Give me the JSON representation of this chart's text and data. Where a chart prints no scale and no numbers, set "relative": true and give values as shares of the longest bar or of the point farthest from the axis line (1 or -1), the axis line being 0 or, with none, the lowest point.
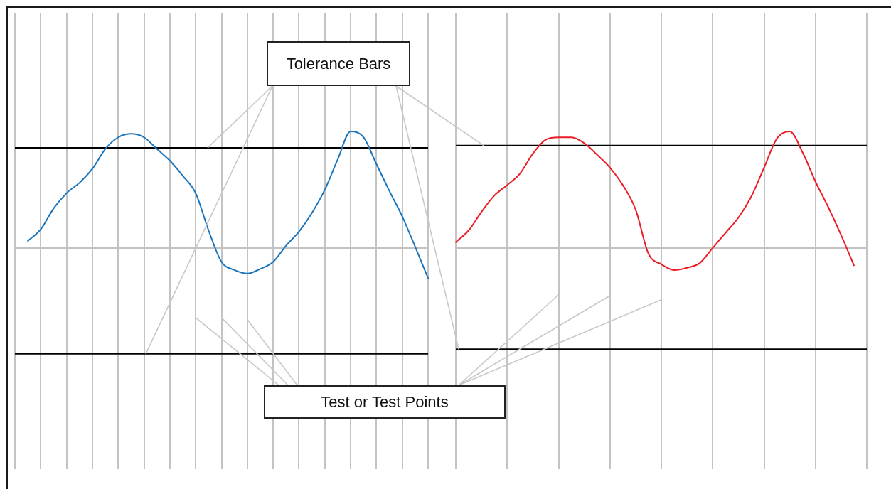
{
  "chart_data": [
    {
      "type": "line",
      "relative": true,
      "categories": [
        null,
        null,
        null,
        null,
        null,
        null,
        null,
        null,
        null,
        null,
        null,
        null,
        null,
        null,
        null,
        null,
        null,
        null,
        null,
        null,
        null,
        null,
        null,
        null,
        null,
        null,
        null,
        null,
        null,
        null,
        null,
        null,
        null
      ],
      "series": [
        {
          "color": "#1b75bc",
          "values": [
            null,
            0.06,
            0.16,
            0.34,
            0.47,
            0.56,
            0.68,
            0.85,
            0.95,
            0.98,
            0.95,
            0.85,
            0.75,
            0.62,
            0.47,
            0.15,
            -0.12,
            -0.19,
            -0.22,
            -0.18,
            -0.12,
            0.02,
            0.14,
            0.3,
            0.5,
            0.76,
            1.0,
            0.95,
            0.72,
            0.49,
            0.27,
            0.01,
            -0.26
          ]
        }
      ],
      "grid": "x",
      "ref_lines": [
        {
          "axis": "y",
          "value": 0.86,
          "color": "#000000"
        },
        {
          "axis": "y",
          "value": -0.91,
          "color": "#000000"
        }
      ],
      "annotations": [
        "Tolerance Bars",
        "Test or Test Points"
      ]
    },
    {
      "type": "line",
      "relative": true,
      "categories": [
        null,
        null,
        null,
        null,
        null,
        null,
        null,
        null,
        null,
        null,
        null,
        null,
        null,
        null,
        null,
        null,
        null,
        null,
        null,
        null,
        null,
        null,
        null,
        null,
        null,
        null,
        null,
        null,
        null,
        null,
        null,
        null,
        null
      ],
      "series": [
        {
          "color": "#ed1c24",
          "values": [
            0.05,
            0.15,
            0.31,
            0.45,
            0.54,
            0.64,
            0.81,
            0.93,
            0.95,
            0.95,
            0.9,
            0.8,
            0.69,
            0.54,
            0.33,
            -0.05,
            -0.14,
            -0.19,
            -0.17,
            -0.13,
            0.0,
            0.13,
            0.26,
            0.44,
            0.69,
            0.94,
            1.0,
            0.82,
            0.57,
            0.35,
            0.11,
            -0.15,
            null
          ]
        }
      ],
      "grid": "x",
      "ref_lines": [
        {
          "axis": "y",
          "value": 0.88,
          "color": "#000000"
        },
        {
          "axis": "y",
          "value": -0.87,
          "color": "#000000"
        }
      ]
    }
  ]
}
